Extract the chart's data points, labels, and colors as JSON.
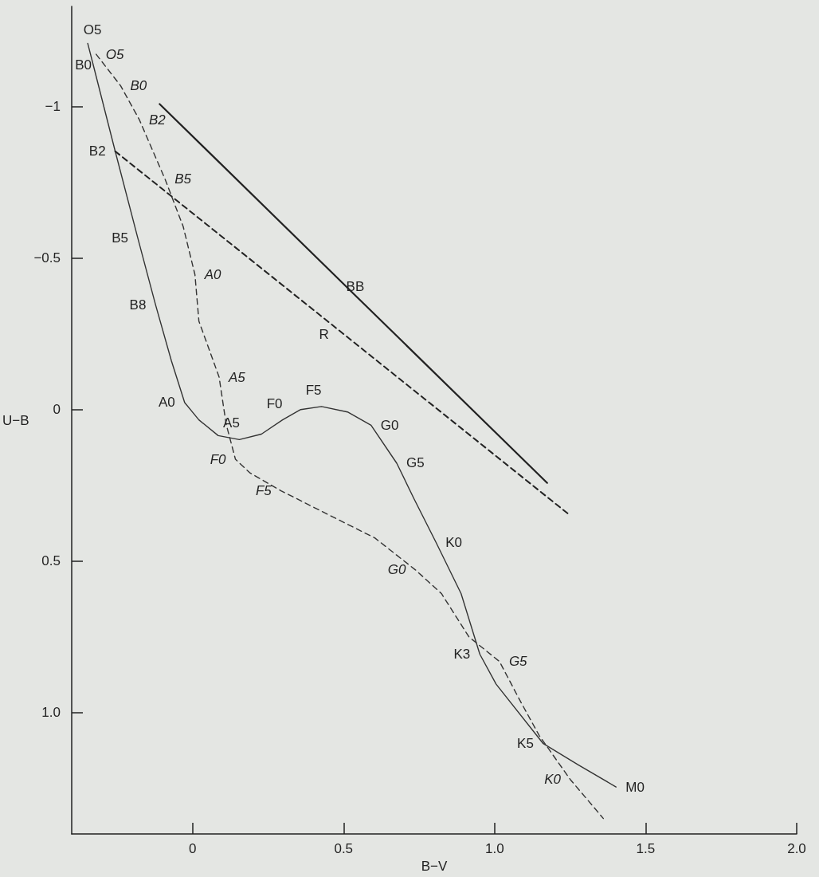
{
  "chart_data": {
    "type": "line",
    "xlabel": "B−V",
    "ylabel": "U−B",
    "xlim": [
      -0.4,
      2.0
    ],
    "ylim": [
      1.4,
      -1.33
    ],
    "xticks": [
      {
        "value": 0,
        "label": "0"
      },
      {
        "value": 0.5,
        "label": "0.5"
      },
      {
        "value": 1.0,
        "label": "1.0"
      },
      {
        "value": 1.5,
        "label": "1.5"
      },
      {
        "value": 2.0,
        "label": "2.0"
      }
    ],
    "yticks": [
      {
        "value": -1,
        "label": "−1"
      },
      {
        "value": -0.5,
        "label": "−0.5"
      },
      {
        "value": 0,
        "label": "0"
      },
      {
        "value": 0.5,
        "label": "0.5"
      },
      {
        "value": 1.0,
        "label": "1.0"
      }
    ],
    "grid": false,
    "marker": "none",
    "series": [
      {
        "color": "#333333",
        "line_style": "solid",
        "x": [
          -0.347,
          -0.329,
          -0.256,
          -0.181,
          -0.122,
          -0.07,
          -0.026,
          0.021,
          0.085,
          0.155,
          0.228,
          0.298,
          0.358,
          0.427,
          0.513,
          0.591,
          0.676,
          0.733,
          0.806,
          0.889,
          0.951,
          1.005,
          1.161,
          1.277,
          1.402
        ],
        "values": [
          -1.208,
          -1.138,
          -0.852,
          -0.565,
          -0.344,
          -0.161,
          -0.023,
          0.034,
          0.086,
          0.099,
          0.081,
          0.034,
          0.0,
          -0.01,
          0.008,
          0.052,
          0.177,
          0.294,
          0.438,
          0.607,
          0.807,
          0.906,
          1.102,
          1.172,
          1.245
        ],
        "value_labels": [
          "O5",
          "B0",
          "B2",
          "B5",
          "B8",
          null,
          "A0",
          null,
          null,
          "A5",
          null,
          "F0",
          null,
          "F5",
          null,
          "G0",
          "G5",
          null,
          "K0",
          null,
          "K3",
          null,
          "K5",
          null,
          "M0"
        ]
      },
      {
        "color": "#333333",
        "line_style": "dashed",
        "x": [
          -0.319,
          -0.238,
          -0.176,
          -0.091,
          -0.031,
          0.008,
          0.021,
          0.088,
          0.111,
          0.142,
          0.189,
          0.293,
          0.448,
          0.604,
          0.738,
          0.824,
          0.915,
          1.016,
          1.083,
          1.148,
          1.251,
          1.36
        ],
        "values": [
          -1.172,
          -1.068,
          -0.956,
          -0.76,
          -0.604,
          -0.445,
          -0.292,
          -0.107,
          0.047,
          0.164,
          0.208,
          0.268,
          0.346,
          0.424,
          0.529,
          0.607,
          0.75,
          0.831,
          0.958,
          1.076,
          1.221,
          1.349
        ],
        "value_labels": [
          "O5",
          "B0",
          "B2",
          "B5",
          null,
          "A0",
          null,
          "A5",
          null,
          "F0",
          null,
          "F5",
          null,
          null,
          "G0",
          null,
          null,
          "G5",
          null,
          null,
          "K0",
          null
        ]
      },
      {
        "color": "#222222",
        "line_style": "solid",
        "x": [
          -0.109,
          0.565,
          1.174
        ],
        "values": [
          -1.008,
          -0.351,
          0.242
        ],
        "value_labels": [
          null,
          "BB",
          null
        ]
      },
      {
        "color": "#222222",
        "line_style": "dashed",
        "x": [
          -0.256,
          0.435,
          1.246
        ],
        "values": [
          -0.852,
          -0.301,
          0.346
        ],
        "value_labels": [
          null,
          "R",
          null
        ]
      }
    ]
  }
}
